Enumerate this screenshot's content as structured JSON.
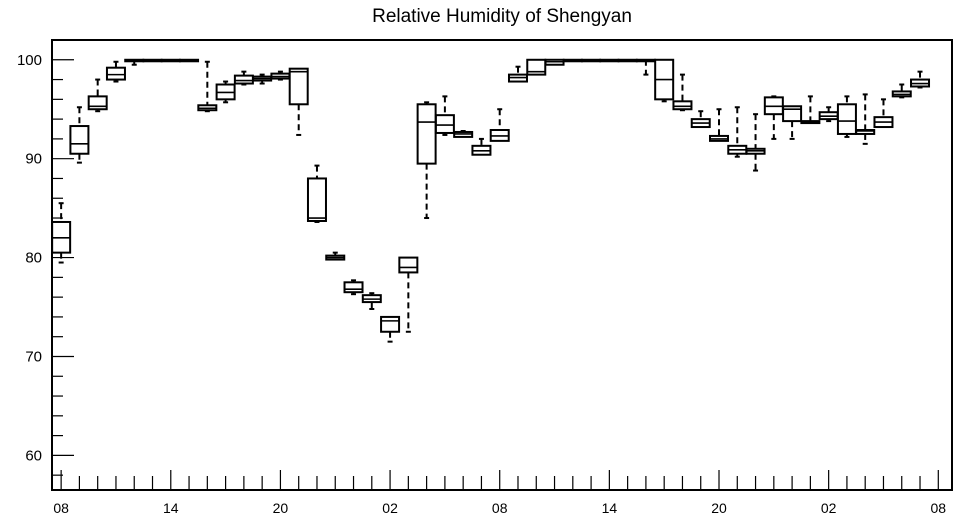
{
  "chart_data": {
    "type": "box",
    "title": "Relative Humidity of Shengyan",
    "xlabel": "",
    "ylabel": "",
    "ylim": [
      56.5,
      102
    ],
    "y_ticks": [
      60,
      70,
      80,
      90,
      100
    ],
    "y_minor_step": 2,
    "x_range": [
      -0.5,
      48.75
    ],
    "x_ticks": [
      {
        "x": 0,
        "label": "08"
      },
      {
        "x": 6,
        "label": "14"
      },
      {
        "x": 12,
        "label": "20"
      },
      {
        "x": 18,
        "label": "02"
      },
      {
        "x": 24,
        "label": "08"
      },
      {
        "x": 30,
        "label": "14"
      },
      {
        "x": 36,
        "label": "20"
      },
      {
        "x": 42,
        "label": "02"
      },
      {
        "x": 48,
        "label": "08"
      }
    ],
    "boxes": [
      {
        "x": 0,
        "min": 79.5,
        "q1": 80.5,
        "median": 82.0,
        "q3": 83.6,
        "max": 85.5
      },
      {
        "x": 1,
        "min": 89.6,
        "q1": 90.5,
        "median": 91.5,
        "q3": 93.3,
        "max": 95.2
      },
      {
        "x": 2,
        "min": 94.8,
        "q1": 95.0,
        "median": 95.3,
        "q3": 96.3,
        "max": 98.0
      },
      {
        "x": 3,
        "min": 97.8,
        "q1": 98.0,
        "median": 98.5,
        "q3": 99.2,
        "max": 99.8
      },
      {
        "x": 4,
        "min": 99.5,
        "q1": 100.0,
        "median": 100.0,
        "q3": 100.0,
        "max": 100.0
      },
      {
        "x": 5,
        "min": 100.0,
        "q1": 100.0,
        "median": 100.0,
        "q3": 100.0,
        "max": 100.0
      },
      {
        "x": 6,
        "min": 100.0,
        "q1": 100.0,
        "median": 100.0,
        "q3": 100.0,
        "max": 100.0
      },
      {
        "x": 7,
        "min": 100.0,
        "q1": 100.0,
        "median": 100.0,
        "q3": 100.0,
        "max": 100.0
      },
      {
        "x": 8,
        "min": 94.8,
        "q1": 94.9,
        "median": 95.1,
        "q3": 95.4,
        "max": 99.8
      },
      {
        "x": 9,
        "min": 95.7,
        "q1": 96.0,
        "median": 96.7,
        "q3": 97.5,
        "max": 97.8
      },
      {
        "x": 10,
        "min": 97.5,
        "q1": 97.6,
        "median": 97.9,
        "q3": 98.4,
        "max": 98.8
      },
      {
        "x": 11,
        "min": 97.6,
        "q1": 97.9,
        "median": 98.1,
        "q3": 98.3,
        "max": 98.5
      },
      {
        "x": 12,
        "min": 98.0,
        "q1": 98.1,
        "median": 98.3,
        "q3": 98.6,
        "max": 98.8
      },
      {
        "x": 13,
        "min": 92.4,
        "q1": 95.5,
        "median": 98.8,
        "q3": 99.1,
        "max": 99.1
      },
      {
        "x": 14,
        "min": 83.6,
        "q1": 83.7,
        "median": 84.0,
        "q3": 88.0,
        "max": 89.3
      },
      {
        "x": 15,
        "min": 79.8,
        "q1": 79.8,
        "median": 80.0,
        "q3": 80.2,
        "max": 80.5
      },
      {
        "x": 16,
        "min": 76.3,
        "q1": 76.5,
        "median": 76.8,
        "q3": 77.5,
        "max": 77.7
      },
      {
        "x": 17,
        "min": 74.8,
        "q1": 75.5,
        "median": 75.8,
        "q3": 76.2,
        "max": 76.4
      },
      {
        "x": 18,
        "min": 71.5,
        "q1": 72.5,
        "median": 73.6,
        "q3": 74.0,
        "max": 74.0
      },
      {
        "x": 19,
        "min": 72.5,
        "q1": 78.5,
        "median": 79.0,
        "q3": 80.0,
        "max": 80.0
      },
      {
        "x": 20,
        "min": 84.0,
        "q1": 89.5,
        "median": 93.7,
        "q3": 95.5,
        "max": 95.7
      },
      {
        "x": 21,
        "min": 92.4,
        "q1": 92.6,
        "median": 93.4,
        "q3": 94.4,
        "max": 96.3
      },
      {
        "x": 22,
        "min": 92.2,
        "q1": 92.2,
        "median": 92.5,
        "q3": 92.7,
        "max": 92.8
      },
      {
        "x": 23,
        "min": 90.4,
        "q1": 90.4,
        "median": 90.8,
        "q3": 91.3,
        "max": 92.0
      },
      {
        "x": 24,
        "min": 91.8,
        "q1": 91.8,
        "median": 92.3,
        "q3": 92.9,
        "max": 95.0
      },
      {
        "x": 25,
        "min": 97.8,
        "q1": 97.8,
        "median": 98.2,
        "q3": 98.5,
        "max": 99.3
      },
      {
        "x": 26,
        "min": 98.5,
        "q1": 98.5,
        "median": 98.8,
        "q3": 100.0,
        "max": 100.0
      },
      {
        "x": 27,
        "min": 99.5,
        "q1": 99.5,
        "median": 99.8,
        "q3": 100.0,
        "max": 100.0
      },
      {
        "x": 28,
        "min": 100.0,
        "q1": 100.0,
        "median": 100.0,
        "q3": 100.0,
        "max": 100.0
      },
      {
        "x": 29,
        "min": 100.0,
        "q1": 100.0,
        "median": 100.0,
        "q3": 100.0,
        "max": 100.0
      },
      {
        "x": 30,
        "min": 100.0,
        "q1": 100.0,
        "median": 100.0,
        "q3": 100.0,
        "max": 100.0
      },
      {
        "x": 31,
        "min": 100.0,
        "q1": 100.0,
        "median": 100.0,
        "q3": 100.0,
        "max": 100.0
      },
      {
        "x": 32,
        "min": 98.5,
        "q1": 100.0,
        "median": 100.0,
        "q3": 100.0,
        "max": 100.0
      },
      {
        "x": 33,
        "min": 95.8,
        "q1": 96.0,
        "median": 98.0,
        "q3": 100.0,
        "max": 100.0
      },
      {
        "x": 34,
        "min": 94.9,
        "q1": 95.0,
        "median": 95.3,
        "q3": 95.8,
        "max": 98.5
      },
      {
        "x": 35,
        "min": 93.2,
        "q1": 93.2,
        "median": 93.6,
        "q3": 94.0,
        "max": 94.8
      },
      {
        "x": 36,
        "min": 91.8,
        "q1": 91.8,
        "median": 92.0,
        "q3": 92.3,
        "max": 95.0
      },
      {
        "x": 37,
        "min": 90.2,
        "q1": 90.5,
        "median": 90.9,
        "q3": 91.3,
        "max": 95.2
      },
      {
        "x": 38,
        "min": 88.8,
        "q1": 90.5,
        "median": 90.8,
        "q3": 91.0,
        "max": 94.5
      },
      {
        "x": 39,
        "min": 92.0,
        "q1": 94.5,
        "median": 95.3,
        "q3": 96.2,
        "max": 96.3
      },
      {
        "x": 40,
        "min": 92.0,
        "q1": 93.8,
        "median": 95.0,
        "q3": 95.3,
        "max": 95.3
      },
      {
        "x": 41,
        "min": 93.6,
        "q1": 93.6,
        "median": 93.7,
        "q3": 93.8,
        "max": 96.3
      },
      {
        "x": 42,
        "min": 93.8,
        "q1": 94.0,
        "median": 94.3,
        "q3": 94.7,
        "max": 95.2
      },
      {
        "x": 43,
        "min": 92.2,
        "q1": 92.5,
        "median": 93.8,
        "q3": 95.5,
        "max": 96.3
      },
      {
        "x": 44,
        "min": 91.5,
        "q1": 92.5,
        "median": 92.8,
        "q3": 92.9,
        "max": 96.5
      },
      {
        "x": 45,
        "min": 93.2,
        "q1": 93.2,
        "median": 93.7,
        "q3": 94.2,
        "max": 96.0
      },
      {
        "x": 46,
        "min": 96.2,
        "q1": 96.3,
        "median": 96.5,
        "q3": 96.8,
        "max": 97.5
      },
      {
        "x": 47,
        "min": 97.2,
        "q1": 97.3,
        "median": 97.6,
        "q3": 98.0,
        "max": 98.8
      }
    ]
  }
}
